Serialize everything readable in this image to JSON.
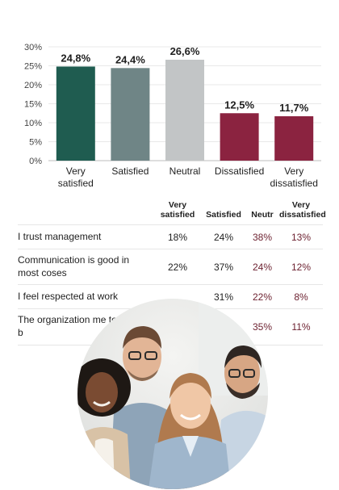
{
  "chart_data": {
    "type": "bar",
    "categories": [
      "Very satisfied",
      "Satisfied",
      "Neutral",
      "Dissatisfied",
      "Very dissatisfied"
    ],
    "category_lines": [
      [
        "Very",
        "satisfied"
      ],
      [
        "Satisfied"
      ],
      [
        "Neutral"
      ],
      [
        "Dissatisfied"
      ],
      [
        "Very",
        "dissatisfied"
      ]
    ],
    "values": [
      24.8,
      24.4,
      26.6,
      12.5,
      11.7
    ],
    "value_labels": [
      "24,8%",
      "24,4%",
      "26,6%",
      "12,5%",
      "11,7%"
    ],
    "colors": [
      "#1f5c50",
      "#6f8586",
      "#c2c5c6",
      "#8b2340",
      "#8b2340"
    ],
    "yticks": [
      0,
      5,
      10,
      15,
      20,
      25,
      30
    ],
    "ytick_labels": [
      "0%",
      "5%",
      "10%",
      "15%",
      "20%",
      "25%",
      "30%"
    ],
    "ylim": [
      0,
      30
    ],
    "grid": true,
    "title": "",
    "xlabel": "",
    "ylabel": ""
  },
  "table": {
    "headers": [
      "",
      "Very satisfied",
      "Satisfied",
      "Neutr",
      "Very dissatisfied"
    ],
    "rows": [
      {
        "statement": "I trust management",
        "values": [
          "18%",
          "24%",
          "38%",
          "13%"
        ]
      },
      {
        "statement": "Communication is good in most coses",
        "values": [
          "22%",
          "37%",
          "24%",
          "12%"
        ]
      },
      {
        "statement": "I feel respected at work",
        "values": [
          "",
          "31%",
          "22%",
          "8%"
        ]
      },
      {
        "statement": "The organization me to do my b",
        "values": [
          "",
          "",
          "35%",
          "11%"
        ]
      }
    ]
  },
  "photo": {
    "icon": "team-photo-icon",
    "colors": {
      "skin_a": "#7a4b32",
      "skin_b": "#e2b596",
      "skin_c": "#f0c7a6",
      "skin_d": "#d7a684",
      "shirt_blue": "#9fb6cc",
      "shirt_light": "#c7d5e3",
      "jacket": "#d8c2a6"
    }
  }
}
